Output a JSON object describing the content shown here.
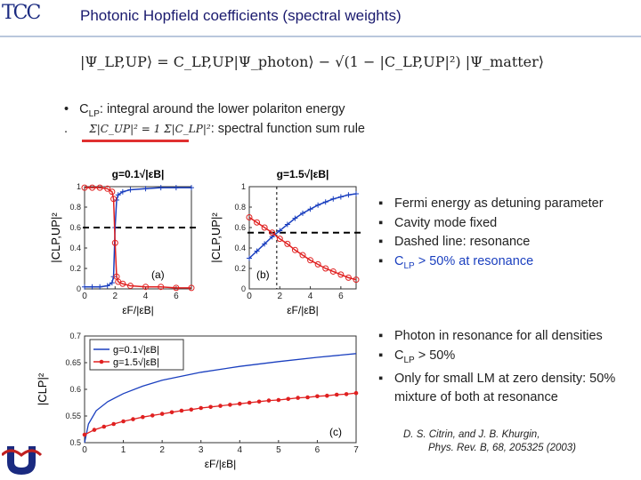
{
  "header": {
    "logo_text": "TCC",
    "title": "Photonic Hopfield coefficients (spectral weights)"
  },
  "equation": "|Ψ_LP,UP⟩ = C_LP,UP|Ψ_photon⟩ − √(1 − |C_LP,UP|²) |Ψ_matter⟩",
  "bullets_top": [
    {
      "marker": "•",
      "text_prefix": "C",
      "text_sub": "LP",
      "text_rest": ": integral around the lower polariton energy"
    },
    {
      "marker": ".",
      "formula": "Σ|C_UP|² = 1   Σ|C_LP|²",
      "text_rest": ": spectral function sum rule"
    }
  ],
  "bullets_right_1": [
    "Fermi energy as detuning parameter",
    "Cavity mode fixed",
    "Dashed line: resonance",
    {
      "prefix": "C",
      "sub": "LP",
      "rest": " > 50% at resonance"
    }
  ],
  "bullets_right_2": [
    "Photon in resonance  for all densities",
    {
      "prefix": "C",
      "sub": "LP",
      "rest": " > 50%"
    },
    "Only for small LM at zero density: 50% mixture of both at resonance"
  ],
  "citation": {
    "line1": "D. S. Citrin, and J. B. Khurgin,",
    "line2": "Phys. Rev. B, 68, 205325 (2003)"
  },
  "colors": {
    "blue": "#1a3fbf",
    "red": "#e02020",
    "title": "#1a1a6e"
  },
  "chart_data": [
    {
      "type": "line",
      "panel_label": "(a)",
      "title": "g=0.1√|εB|",
      "xlabel": "εF/|εB|",
      "ylabel": "|CLP,UP|²",
      "xlim": [
        0,
        7
      ],
      "ylim": [
        0,
        1
      ],
      "xticks": [
        "0",
        "2",
        "4",
        "6"
      ],
      "yticks": [
        "0",
        "0.2",
        "0.4",
        "0.6",
        "0.8",
        "1"
      ],
      "resonance_line": 0.6,
      "resonance_x": 2,
      "series": [
        {
          "color": "#1a3fbf",
          "marker": "+",
          "x": [
            0,
            0.5,
            1,
            1.5,
            1.8,
            1.9,
            2,
            2.1,
            2.2,
            2.5,
            3,
            4,
            5,
            6,
            7
          ],
          "values": [
            0.02,
            0.02,
            0.02,
            0.03,
            0.06,
            0.12,
            0.6,
            0.87,
            0.92,
            0.95,
            0.97,
            0.98,
            0.99,
            0.99,
            0.99
          ]
        },
        {
          "color": "#e02020",
          "marker": "o",
          "x": [
            0,
            0.5,
            1,
            1.5,
            1.8,
            1.9,
            2,
            2.1,
            2.2,
            2.5,
            3,
            4,
            5,
            6,
            7
          ],
          "values": [
            0.99,
            0.99,
            0.99,
            0.98,
            0.95,
            0.88,
            0.45,
            0.12,
            0.07,
            0.05,
            0.03,
            0.02,
            0.02,
            0.01,
            0.01
          ]
        }
      ]
    },
    {
      "type": "line",
      "panel_label": "(b)",
      "title": "g=1.5√|εB|",
      "xlabel": "εF/|εB|",
      "ylabel": "|CLP,UP|²",
      "xlim": [
        0,
        7
      ],
      "ylim": [
        0,
        1
      ],
      "xticks": [
        "0",
        "2",
        "4",
        "6"
      ],
      "yticks": [
        "0",
        "0.2",
        "0.4",
        "0.6",
        "0.8",
        "1"
      ],
      "resonance_line": 0.55,
      "resonance_x": 1.8,
      "series": [
        {
          "color": "#1a3fbf",
          "marker": "+",
          "x": [
            0,
            0.5,
            1,
            1.5,
            2,
            2.5,
            3,
            3.5,
            4,
            4.5,
            5,
            5.5,
            6,
            6.5,
            7
          ],
          "values": [
            0.3,
            0.37,
            0.44,
            0.51,
            0.57,
            0.63,
            0.69,
            0.74,
            0.78,
            0.82,
            0.85,
            0.88,
            0.9,
            0.92,
            0.93
          ]
        },
        {
          "color": "#e02020",
          "marker": "o",
          "x": [
            0,
            0.5,
            1,
            1.5,
            2,
            2.5,
            3,
            3.5,
            4,
            4.5,
            5,
            5.5,
            6,
            6.5,
            7
          ],
          "values": [
            0.7,
            0.65,
            0.6,
            0.55,
            0.49,
            0.44,
            0.38,
            0.33,
            0.28,
            0.24,
            0.2,
            0.17,
            0.14,
            0.11,
            0.09
          ]
        }
      ]
    },
    {
      "type": "line",
      "panel_label": "(c)",
      "xlabel": "εF/|εB|",
      "ylabel": "|CLP|²",
      "xlim": [
        0,
        7
      ],
      "ylim": [
        0.5,
        0.7
      ],
      "xticks": [
        "0",
        "1",
        "2",
        "3",
        "4",
        "5",
        "6",
        "7"
      ],
      "yticks": [
        "0.5",
        "0.55",
        "0.6",
        "0.65",
        "0.7"
      ],
      "legend": "top-left",
      "series": [
        {
          "name": "g=0.1√|εB|",
          "color": "#1a3fbf",
          "marker": "none",
          "x": [
            0,
            0.1,
            0.3,
            0.6,
            1,
            1.5,
            2,
            3,
            4,
            5,
            6,
            7
          ],
          "values": [
            0.5,
            0.535,
            0.56,
            0.577,
            0.592,
            0.606,
            0.617,
            0.632,
            0.643,
            0.652,
            0.66,
            0.667
          ]
        },
        {
          "name": "g=1.5√|εB|",
          "color": "#e02020",
          "marker": "dot",
          "x": [
            0,
            0.25,
            0.5,
            0.75,
            1,
            1.25,
            1.5,
            1.75,
            2,
            2.25,
            2.5,
            2.75,
            3,
            3.25,
            3.5,
            3.75,
            4,
            4.25,
            4.5,
            4.75,
            5,
            5.25,
            5.5,
            5.75,
            6,
            6.25,
            6.5,
            6.75,
            7
          ],
          "values": [
            0.515,
            0.524,
            0.53,
            0.535,
            0.54,
            0.544,
            0.548,
            0.551,
            0.554,
            0.557,
            0.56,
            0.562,
            0.565,
            0.567,
            0.569,
            0.571,
            0.573,
            0.575,
            0.577,
            0.579,
            0.58,
            0.582,
            0.584,
            0.585,
            0.587,
            0.588,
            0.59,
            0.591,
            0.593
          ]
        }
      ]
    }
  ]
}
